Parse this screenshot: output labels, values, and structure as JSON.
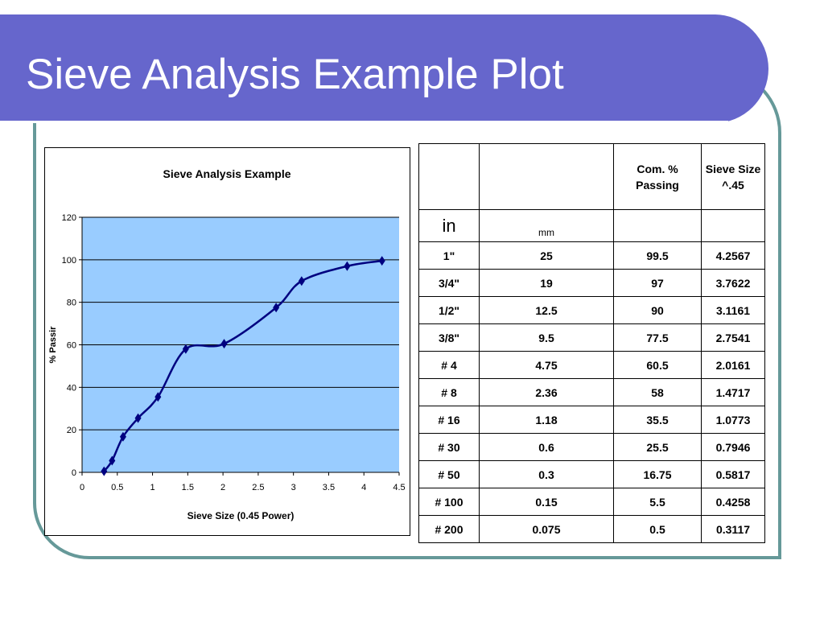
{
  "slide": {
    "title": "Sieve Analysis Example Plot"
  },
  "colors": {
    "title_bar": "#6666cc",
    "frame": "#669999",
    "plot_area": "#99ccff",
    "series_line": "#000080"
  },
  "chart_data": {
    "type": "scatter",
    "title": "Sieve Analysis Example",
    "xlabel": "Sieve Size (0.45 Power)",
    "ylabel": "% Passir",
    "xlim": [
      0,
      4.5
    ],
    "ylim": [
      0,
      120
    ],
    "x_ticks": [
      "0",
      "0.5",
      "1",
      "1.5",
      "2",
      "2.5",
      "3",
      "3.5",
      "4",
      "4.5"
    ],
    "y_ticks": [
      "0",
      "20",
      "40",
      "60",
      "80",
      "100",
      "120"
    ],
    "grid": "horizontal",
    "legend": "none",
    "markers": "diamond",
    "line": "smoothed",
    "series": [
      {
        "x": [
          0.3117,
          0.4258,
          0.5817,
          0.7946,
          1.0773,
          1.4717,
          2.0161,
          2.7541,
          3.1161,
          3.7622,
          4.2567
        ],
        "y": [
          0.5,
          5.5,
          16.75,
          25.5,
          35.5,
          58,
          60.5,
          77.5,
          90,
          97,
          99.5
        ]
      }
    ]
  },
  "table": {
    "header": [
      "",
      "",
      "Com. % Passing",
      "Sieve Size ^.45"
    ],
    "units": [
      "in",
      "mm",
      "",
      ""
    ],
    "rows": [
      [
        "1\"",
        "25",
        "99.5",
        "4.2567"
      ],
      [
        "3/4\"",
        "19",
        "97",
        "3.7622"
      ],
      [
        "1/2\"",
        "12.5",
        "90",
        "3.1161"
      ],
      [
        "3/8\"",
        "9.5",
        "77.5",
        "2.7541"
      ],
      [
        "# 4",
        "4.75",
        "60.5",
        "2.0161"
      ],
      [
        "# 8",
        "2.36",
        "58",
        "1.4717"
      ],
      [
        "# 16",
        "1.18",
        "35.5",
        "1.0773"
      ],
      [
        "# 30",
        "0.6",
        "25.5",
        "0.7946"
      ],
      [
        "# 50",
        "0.3",
        "16.75",
        "0.5817"
      ],
      [
        "# 100",
        "0.15",
        "5.5",
        "0.4258"
      ],
      [
        "# 200",
        "0.075",
        "0.5",
        "0.3117"
      ]
    ]
  }
}
